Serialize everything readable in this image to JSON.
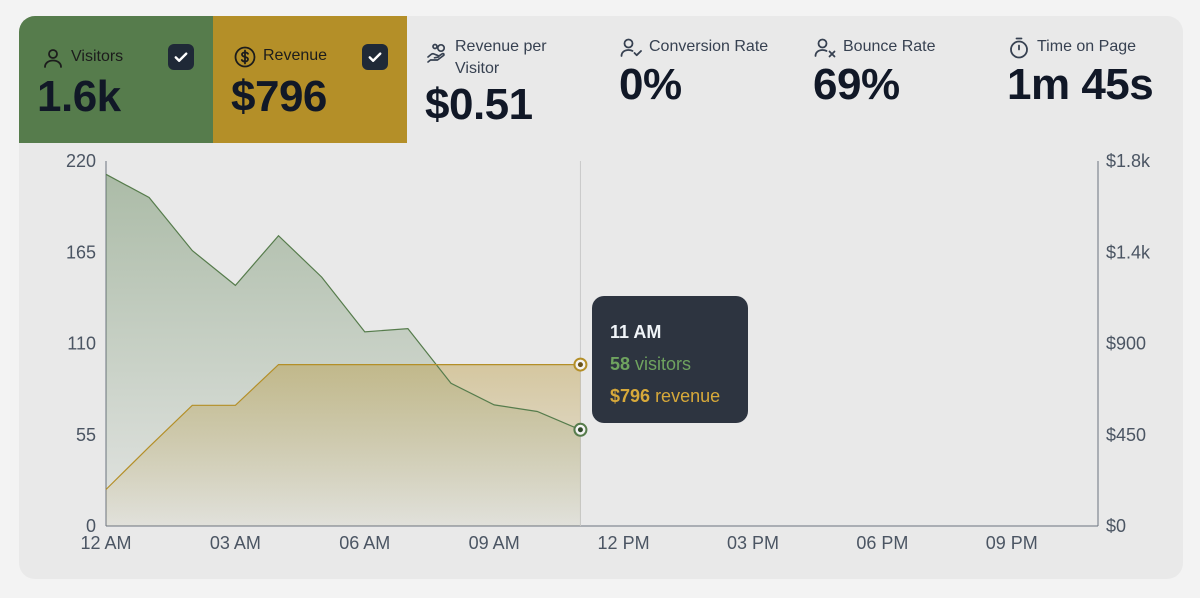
{
  "metrics": [
    {
      "id": "visitors",
      "label": "Visitors",
      "value": "1.6k",
      "icon": "user-icon",
      "checked": true,
      "bg": "#567c4c"
    },
    {
      "id": "revenue",
      "label": "Revenue",
      "value": "$796",
      "icon": "dollar-circle-icon",
      "checked": true,
      "bg": "#b48f28"
    },
    {
      "id": "rpv",
      "label": "Revenue per Visitor",
      "value": "$0.51",
      "icon": "hand-coins-icon"
    },
    {
      "id": "conversion",
      "label": "Conversion Rate",
      "value": "0%",
      "icon": "user-check-icon"
    },
    {
      "id": "bounce",
      "label": "Bounce Rate",
      "value": "69%",
      "icon": "user-x-icon"
    },
    {
      "id": "time",
      "label": "Time on Page",
      "value": "1m 45s",
      "icon": "stopwatch-icon"
    }
  ],
  "tooltip": {
    "time": "11 AM",
    "visitors_value": "58",
    "visitors_unit": "visitors",
    "revenue_value": "$796",
    "revenue_unit": "revenue"
  },
  "chart_data": {
    "type": "area",
    "x": [
      "12 AM",
      "1 AM",
      "2 AM",
      "3 AM",
      "4 AM",
      "5 AM",
      "6 AM",
      "7 AM",
      "8 AM",
      "9 AM",
      "10 AM",
      "11 AM"
    ],
    "x_ticks": [
      "12 AM",
      "03 AM",
      "06 AM",
      "09 AM",
      "12 PM",
      "03 PM",
      "06 PM",
      "09 PM"
    ],
    "x_range_hours": [
      0,
      23
    ],
    "series": [
      {
        "name": "Visitors",
        "axis": "left",
        "color": "#567c4c",
        "values": [
          212,
          198,
          166,
          145,
          175,
          150,
          117,
          119,
          86,
          73,
          69,
          58
        ]
      },
      {
        "name": "Revenue",
        "axis": "right",
        "color": "#b48f28",
        "values": [
          180,
          390,
          595,
          595,
          796,
          796,
          796,
          796,
          796,
          796,
          796,
          796
        ]
      }
    ],
    "y_left": {
      "ticks": [
        "220",
        "165",
        "110",
        "55",
        "0"
      ],
      "range": [
        0,
        220
      ]
    },
    "y_right": {
      "ticks": [
        "$1.8k",
        "$1.4k",
        "$900",
        "$450",
        "$0"
      ],
      "range": [
        0,
        1800
      ]
    },
    "hover_index": 11,
    "grid": false
  }
}
